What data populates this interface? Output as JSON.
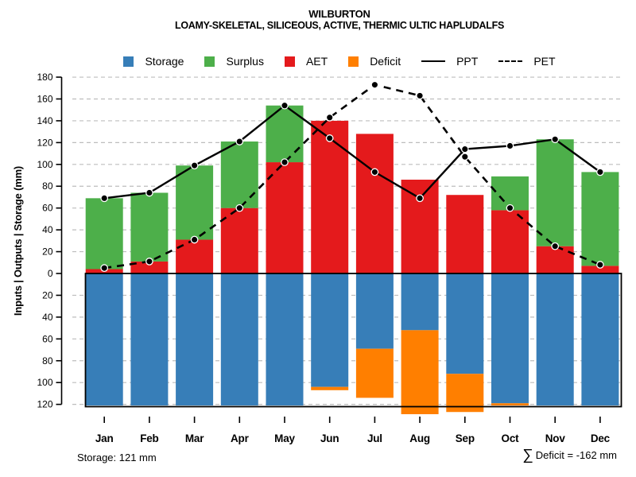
{
  "title": "WILBURTON",
  "subtitle": "LOAMY-SKELETAL, SILICEOUS, ACTIVE, THERMIC ULTIC HAPLUDALFS",
  "y_axis": {
    "label": "Inputs | Outputs | Storage  (mm)",
    "tick_values": [
      180,
      160,
      140,
      120,
      100,
      80,
      60,
      40,
      20,
      0,
      -20,
      -40,
      -60,
      -80,
      -100,
      -120
    ],
    "tick_labels": [
      "180",
      "160",
      "140",
      "120",
      "100",
      "80",
      "60",
      "40",
      "20",
      "0",
      "20",
      "40",
      "60",
      "80",
      "100",
      "120"
    ]
  },
  "legend": {
    "items": [
      {
        "label": "Storage",
        "swatch": "square",
        "color": "#377EB8"
      },
      {
        "label": "Surplus",
        "swatch": "square",
        "color": "#4DAF4A"
      },
      {
        "label": "AET",
        "swatch": "square",
        "color": "#E41A1C"
      },
      {
        "label": "Deficit",
        "swatch": "square",
        "color": "#FF7F00"
      },
      {
        "label": "PPT",
        "swatch": "line-solid",
        "color": "#000000"
      },
      {
        "label": "PET",
        "swatch": "line-dashed",
        "color": "#000000"
      }
    ]
  },
  "annotations": {
    "storage_note": "Storage: 121 mm",
    "deficit_sigma": "∑",
    "deficit_note": "Deficit = -162 mm"
  },
  "chart_data": {
    "type": "bar",
    "title": "WILBURTON",
    "subtitle": "LOAMY-SKELETAL, SILICEOUS, ACTIVE, THERMIC ULTIC HAPLUDALFS",
    "categories": [
      "Jan",
      "Feb",
      "Mar",
      "Apr",
      "May",
      "Jun",
      "Jul",
      "Aug",
      "Sep",
      "Oct",
      "Nov",
      "Dec"
    ],
    "ylabel": "Inputs | Outputs | Storage  (mm)",
    "units": "mm",
    "ylim": [
      -130,
      180
    ],
    "grid": "horizontal dashed every 20 mm, zero line solid",
    "legend_position": "top center",
    "colors": {
      "storage": "#377EB8",
      "surplus": "#4DAF4A",
      "aet": "#E41A1C",
      "deficit": "#FF7F00",
      "lines": "#000000",
      "gridline": "#BDBDBD"
    },
    "series": [
      {
        "name": "AET",
        "type": "bar",
        "direction": "up",
        "color": "#E41A1C",
        "values": [
          4,
          11,
          31,
          60,
          102,
          140,
          128,
          86,
          72,
          58,
          25,
          7
        ]
      },
      {
        "name": "Surplus",
        "type": "bar",
        "direction": "up",
        "stacked_on": "AET",
        "color": "#4DAF4A",
        "values": [
          65,
          63,
          68,
          61,
          52,
          0,
          0,
          0,
          0,
          31,
          98,
          86
        ]
      },
      {
        "name": "Storage",
        "type": "bar",
        "direction": "down",
        "color": "#377EB8",
        "values": [
          121,
          121,
          121,
          121,
          121,
          104,
          69,
          52,
          92,
          119,
          121,
          121
        ]
      },
      {
        "name": "Deficit",
        "type": "bar",
        "direction": "down",
        "stacked_on": "Storage",
        "color": "#FF7F00",
        "values": [
          0,
          0,
          0,
          0,
          0,
          3,
          45,
          77,
          35,
          2,
          0,
          0
        ]
      },
      {
        "name": "PPT",
        "type": "line",
        "style": "solid",
        "color": "#000000",
        "values": [
          69,
          74,
          99,
          121,
          154,
          124,
          93,
          69,
          114,
          117,
          123,
          93
        ]
      },
      {
        "name": "PET",
        "type": "line",
        "style": "dashed",
        "color": "#000000",
        "values": [
          5,
          11,
          31,
          60,
          102,
          143,
          173,
          163,
          107,
          60,
          25,
          8
        ]
      }
    ],
    "storage_total_note": "Storage: 121 mm",
    "deficit_total_note": "∑ Deficit = -162 mm"
  }
}
